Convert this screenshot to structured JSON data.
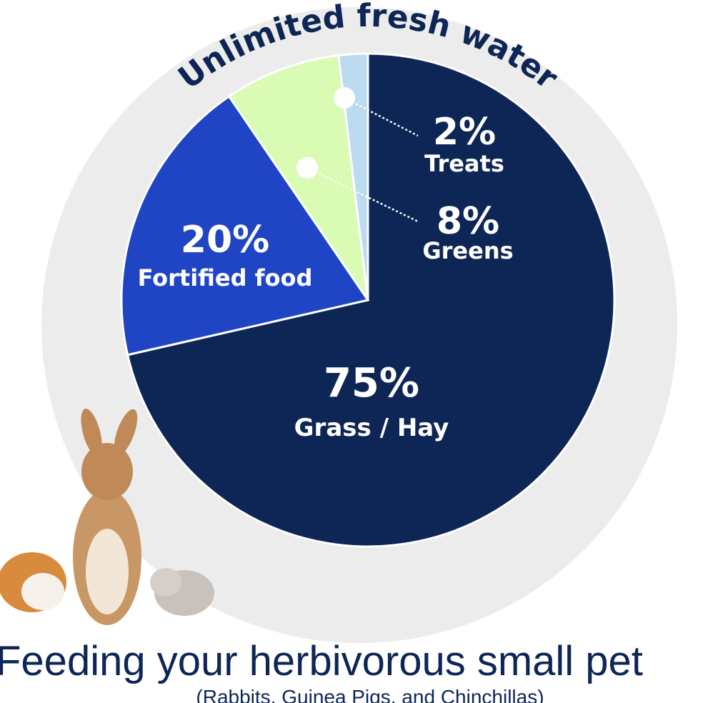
{
  "chart_data": {
    "type": "pie",
    "title": "Unlimited fresh water",
    "categories": [
      "Grass / Hay",
      "Fortified food",
      "Greens",
      "Treats"
    ],
    "values": [
      75,
      20,
      8,
      2
    ],
    "value_labels": [
      "75%",
      "20%",
      "8%",
      "2%"
    ],
    "colors": [
      "#0d2656",
      "#1f45c4",
      "#d9fbb4",
      "#bcdaf0"
    ],
    "footer_title": "Feeding your herbivorous small pet",
    "footer_subtitle": "(Rabbits, Guinea Pigs, and Chinchillas)"
  }
}
